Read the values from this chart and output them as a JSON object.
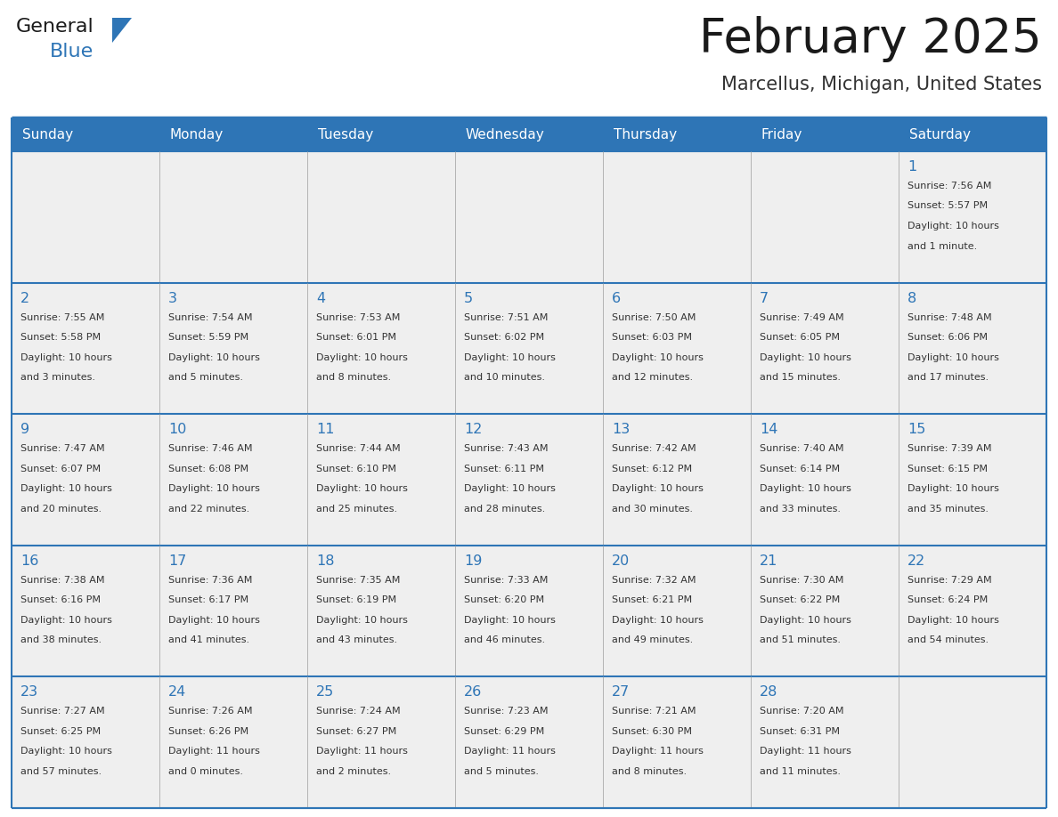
{
  "title": "February 2025",
  "subtitle": "Marcellus, Michigan, United States",
  "header_bg": "#2E75B6",
  "header_text_color": "#FFFFFF",
  "cell_bg": "#EFEFEF",
  "border_color": "#2E75B6",
  "border_color_light": "#AAAAAA",
  "day_number_color": "#2E75B6",
  "cell_text_color": "#333333",
  "title_color": "#1a1a1a",
  "subtitle_color": "#333333",
  "days_of_week": [
    "Sunday",
    "Monday",
    "Tuesday",
    "Wednesday",
    "Thursday",
    "Friday",
    "Saturday"
  ],
  "calendar_data": [
    [
      null,
      null,
      null,
      null,
      null,
      null,
      {
        "day": "1",
        "sunrise": "7:56 AM",
        "sunset": "5:57 PM",
        "daylight": "10 hours and 1 minute."
      }
    ],
    [
      {
        "day": "2",
        "sunrise": "7:55 AM",
        "sunset": "5:58 PM",
        "daylight": "10 hours and 3 minutes."
      },
      {
        "day": "3",
        "sunrise": "7:54 AM",
        "sunset": "5:59 PM",
        "daylight": "10 hours and 5 minutes."
      },
      {
        "day": "4",
        "sunrise": "7:53 AM",
        "sunset": "6:01 PM",
        "daylight": "10 hours and 8 minutes."
      },
      {
        "day": "5",
        "sunrise": "7:51 AM",
        "sunset": "6:02 PM",
        "daylight": "10 hours and 10 minutes."
      },
      {
        "day": "6",
        "sunrise": "7:50 AM",
        "sunset": "6:03 PM",
        "daylight": "10 hours and 12 minutes."
      },
      {
        "day": "7",
        "sunrise": "7:49 AM",
        "sunset": "6:05 PM",
        "daylight": "10 hours and 15 minutes."
      },
      {
        "day": "8",
        "sunrise": "7:48 AM",
        "sunset": "6:06 PM",
        "daylight": "10 hours and 17 minutes."
      }
    ],
    [
      {
        "day": "9",
        "sunrise": "7:47 AM",
        "sunset": "6:07 PM",
        "daylight": "10 hours and 20 minutes."
      },
      {
        "day": "10",
        "sunrise": "7:46 AM",
        "sunset": "6:08 PM",
        "daylight": "10 hours and 22 minutes."
      },
      {
        "day": "11",
        "sunrise": "7:44 AM",
        "sunset": "6:10 PM",
        "daylight": "10 hours and 25 minutes."
      },
      {
        "day": "12",
        "sunrise": "7:43 AM",
        "sunset": "6:11 PM",
        "daylight": "10 hours and 28 minutes."
      },
      {
        "day": "13",
        "sunrise": "7:42 AM",
        "sunset": "6:12 PM",
        "daylight": "10 hours and 30 minutes."
      },
      {
        "day": "14",
        "sunrise": "7:40 AM",
        "sunset": "6:14 PM",
        "daylight": "10 hours and 33 minutes."
      },
      {
        "day": "15",
        "sunrise": "7:39 AM",
        "sunset": "6:15 PM",
        "daylight": "10 hours and 35 minutes."
      }
    ],
    [
      {
        "day": "16",
        "sunrise": "7:38 AM",
        "sunset": "6:16 PM",
        "daylight": "10 hours and 38 minutes."
      },
      {
        "day": "17",
        "sunrise": "7:36 AM",
        "sunset": "6:17 PM",
        "daylight": "10 hours and 41 minutes."
      },
      {
        "day": "18",
        "sunrise": "7:35 AM",
        "sunset": "6:19 PM",
        "daylight": "10 hours and 43 minutes."
      },
      {
        "day": "19",
        "sunrise": "7:33 AM",
        "sunset": "6:20 PM",
        "daylight": "10 hours and 46 minutes."
      },
      {
        "day": "20",
        "sunrise": "7:32 AM",
        "sunset": "6:21 PM",
        "daylight": "10 hours and 49 minutes."
      },
      {
        "day": "21",
        "sunrise": "7:30 AM",
        "sunset": "6:22 PM",
        "daylight": "10 hours and 51 minutes."
      },
      {
        "day": "22",
        "sunrise": "7:29 AM",
        "sunset": "6:24 PM",
        "daylight": "10 hours and 54 minutes."
      }
    ],
    [
      {
        "day": "23",
        "sunrise": "7:27 AM",
        "sunset": "6:25 PM",
        "daylight": "10 hours and 57 minutes."
      },
      {
        "day": "24",
        "sunrise": "7:26 AM",
        "sunset": "6:26 PM",
        "daylight": "11 hours and 0 minutes."
      },
      {
        "day": "25",
        "sunrise": "7:24 AM",
        "sunset": "6:27 PM",
        "daylight": "11 hours and 2 minutes."
      },
      {
        "day": "26",
        "sunrise": "7:23 AM",
        "sunset": "6:29 PM",
        "daylight": "11 hours and 5 minutes."
      },
      {
        "day": "27",
        "sunrise": "7:21 AM",
        "sunset": "6:30 PM",
        "daylight": "11 hours and 8 minutes."
      },
      {
        "day": "28",
        "sunrise": "7:20 AM",
        "sunset": "6:31 PM",
        "daylight": "11 hours and 11 minutes."
      },
      null
    ]
  ],
  "logo_text_general": "General",
  "logo_text_blue": "Blue",
  "logo_color_general": "#1a1a1a",
  "logo_color_blue": "#2E75B6",
  "logo_triangle_color": "#2E75B6"
}
